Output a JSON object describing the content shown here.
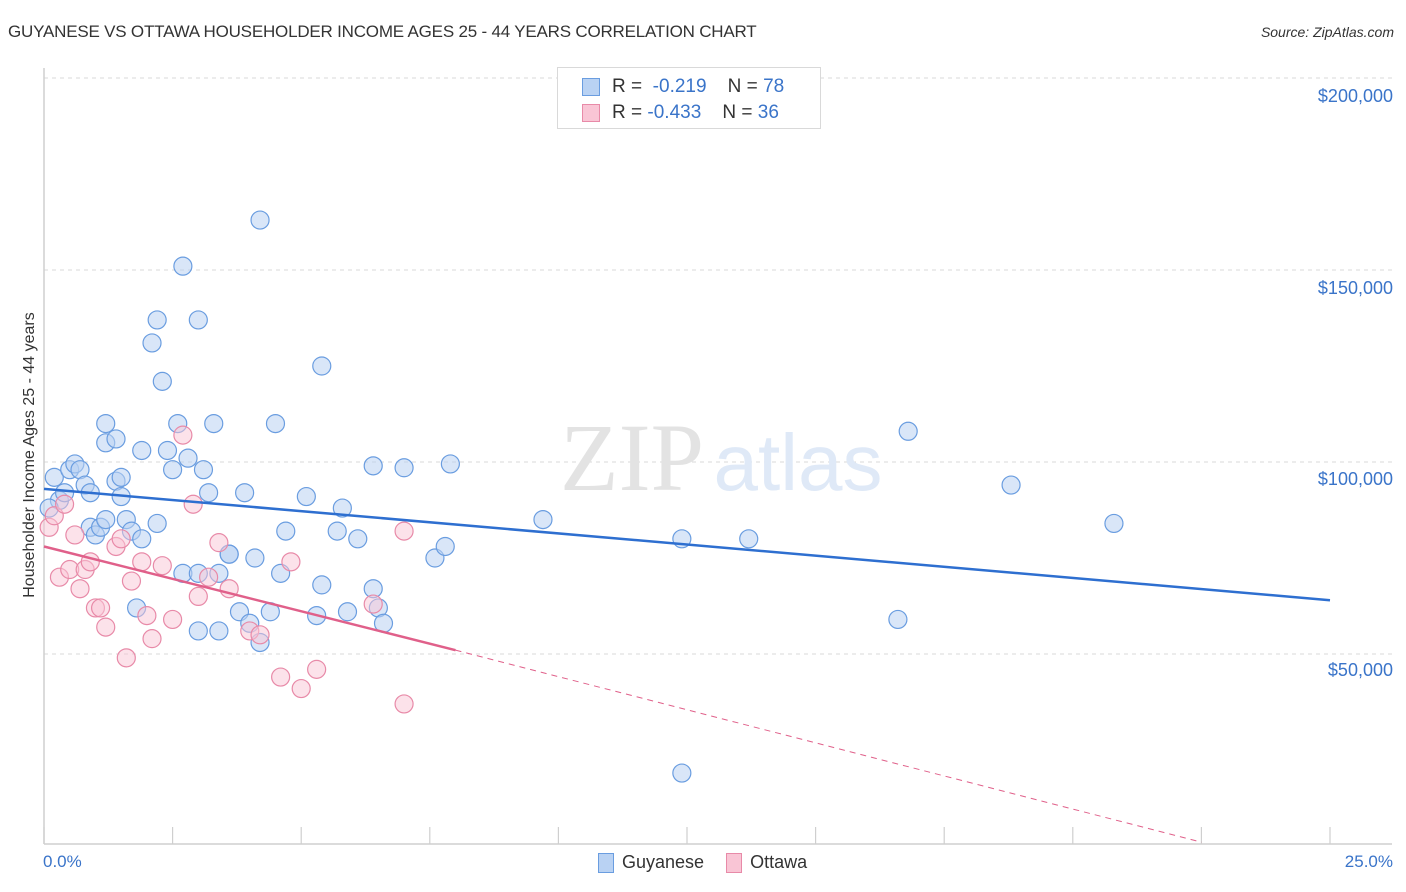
{
  "header": {
    "title": "GUYANESE VS OTTAWA HOUSEHOLDER INCOME AGES 25 - 44 YEARS CORRELATION CHART",
    "source": "Source: ZipAtlas.com"
  },
  "legend": {
    "rows": [
      {
        "r_label": "R =",
        "r_value": "-0.219",
        "n_label": "N =",
        "n_value": "78",
        "color_fill": "#b9d2f3",
        "color_stroke": "#6a9de0"
      },
      {
        "r_label": "R =",
        "r_value": "-0.433",
        "n_label": "N =",
        "n_value": "36",
        "color_fill": "#f9c5d5",
        "color_stroke": "#e88aa8"
      }
    ],
    "bottom": [
      {
        "label": "Guyanese",
        "color_fill": "#b9d2f3",
        "color_stroke": "#6a9de0"
      },
      {
        "label": "Ottawa",
        "color_fill": "#f9c5d5",
        "color_stroke": "#e88aa8"
      }
    ]
  },
  "axes": {
    "y_title": "Householder Income Ages 25 - 44 years",
    "x_tick_labels": {
      "left": "0.0%",
      "right": "25.0%"
    },
    "y_tick_labels": [
      "$200,000",
      "$150,000",
      "$100,000",
      "$50,000"
    ]
  },
  "watermark": {
    "zip": "ZIP",
    "atlas": "atlas"
  },
  "colors": {
    "blue_line": "#2e6fd0",
    "pink_line": "#e0608a",
    "axis_text": "#3a74c9",
    "grid": "#d8d8d8"
  },
  "chart_data": {
    "type": "scatter",
    "title": "GUYANESE VS OTTAWA HOUSEHOLDER INCOME AGES 25 - 44 YEARS CORRELATION CHART",
    "xlabel": "",
    "ylabel": "Householder Income Ages 25 - 44 years",
    "xlim": [
      0,
      25
    ],
    "ylim": [
      0,
      205000
    ],
    "x_unit": "%",
    "y_ticks": [
      50000,
      100000,
      150000,
      200000
    ],
    "grid": true,
    "legend_position": "top-center",
    "series": [
      {
        "name": "Guyanese",
        "R": -0.219,
        "N": 78,
        "color": "#6a9de0",
        "trend": {
          "x": [
            0,
            25
          ],
          "y": [
            93000,
            64000
          ]
        },
        "points": [
          [
            0.2,
            96000
          ],
          [
            0.3,
            90000
          ],
          [
            0.4,
            92000
          ],
          [
            0.5,
            98000
          ],
          [
            0.6,
            99500
          ],
          [
            0.7,
            98000
          ],
          [
            0.8,
            94000
          ],
          [
            0.9,
            92000
          ],
          [
            0.9,
            83000
          ],
          [
            1.0,
            81000
          ],
          [
            1.1,
            83000
          ],
          [
            1.2,
            85000
          ],
          [
            1.2,
            105000
          ],
          [
            1.2,
            110000
          ],
          [
            1.4,
            106000
          ],
          [
            1.4,
            95000
          ],
          [
            1.5,
            96000
          ],
          [
            1.5,
            91000
          ],
          [
            1.6,
            85000
          ],
          [
            1.7,
            82000
          ],
          [
            1.8,
            62000
          ],
          [
            1.9,
            80000
          ],
          [
            1.9,
            103000
          ],
          [
            2.1,
            131000
          ],
          [
            2.2,
            84000
          ],
          [
            2.2,
            137000
          ],
          [
            2.3,
            121000
          ],
          [
            2.4,
            103000
          ],
          [
            2.5,
            98000
          ],
          [
            2.6,
            110000
          ],
          [
            2.7,
            71000
          ],
          [
            2.7,
            151000
          ],
          [
            2.8,
            101000
          ],
          [
            3.0,
            71000
          ],
          [
            3.0,
            56000
          ],
          [
            3.0,
            137000
          ],
          [
            3.1,
            98000
          ],
          [
            3.2,
            92000
          ],
          [
            3.3,
            110000
          ],
          [
            3.4,
            71000
          ],
          [
            3.4,
            56000
          ],
          [
            3.6,
            76000
          ],
          [
            3.6,
            76000
          ],
          [
            3.8,
            61000
          ],
          [
            3.9,
            92000
          ],
          [
            4.0,
            58000
          ],
          [
            4.1,
            75000
          ],
          [
            4.2,
            53000
          ],
          [
            4.2,
            163000
          ],
          [
            4.4,
            61000
          ],
          [
            4.5,
            110000
          ],
          [
            4.6,
            71000
          ],
          [
            4.7,
            82000
          ],
          [
            5.1,
            91000
          ],
          [
            5.3,
            60000
          ],
          [
            5.4,
            68000
          ],
          [
            5.4,
            125000
          ],
          [
            5.7,
            82000
          ],
          [
            5.8,
            88000
          ],
          [
            5.9,
            61000
          ],
          [
            6.1,
            80000
          ],
          [
            6.4,
            99000
          ],
          [
            6.4,
            67000
          ],
          [
            6.5,
            62000
          ],
          [
            6.6,
            58000
          ],
          [
            7.0,
            98500
          ],
          [
            7.6,
            75000
          ],
          [
            7.8,
            78000
          ],
          [
            7.9,
            99500
          ],
          [
            9.7,
            85000
          ],
          [
            12.4,
            80000
          ],
          [
            12.4,
            19000
          ],
          [
            13.7,
            80000
          ],
          [
            16.6,
            59000
          ],
          [
            16.8,
            108000
          ],
          [
            18.8,
            94000
          ],
          [
            20.8,
            84000
          ],
          [
            0.1,
            88000
          ]
        ]
      },
      {
        "name": "Ottawa",
        "R": -0.433,
        "N": 36,
        "color": "#e88aa8",
        "trend": {
          "x": [
            0,
            8.0
          ],
          "y": [
            78000,
            51000
          ],
          "dashed_extension": {
            "x": [
              8.0,
              22.5
            ],
            "y": [
              51000,
              1000
            ]
          }
        },
        "points": [
          [
            0.1,
            83000
          ],
          [
            0.2,
            86000
          ],
          [
            0.3,
            70000
          ],
          [
            0.4,
            89000
          ],
          [
            0.5,
            72000
          ],
          [
            0.6,
            81000
          ],
          [
            0.7,
            67000
          ],
          [
            0.8,
            72000
          ],
          [
            0.9,
            74000
          ],
          [
            1.0,
            62000
          ],
          [
            1.1,
            62000
          ],
          [
            1.2,
            57000
          ],
          [
            1.4,
            78000
          ],
          [
            1.5,
            80000
          ],
          [
            1.6,
            49000
          ],
          [
            1.7,
            69000
          ],
          [
            1.9,
            74000
          ],
          [
            2.0,
            60000
          ],
          [
            2.1,
            54000
          ],
          [
            2.3,
            73000
          ],
          [
            2.5,
            59000
          ],
          [
            2.7,
            107000
          ],
          [
            2.9,
            89000
          ],
          [
            3.0,
            65000
          ],
          [
            3.2,
            70000
          ],
          [
            3.4,
            79000
          ],
          [
            3.6,
            67000
          ],
          [
            4.0,
            56000
          ],
          [
            4.2,
            55000
          ],
          [
            4.6,
            44000
          ],
          [
            4.8,
            74000
          ],
          [
            5.0,
            41000
          ],
          [
            5.3,
            46000
          ],
          [
            6.4,
            63000
          ],
          [
            7.0,
            37000
          ],
          [
            7.0,
            82000
          ]
        ]
      }
    ]
  }
}
